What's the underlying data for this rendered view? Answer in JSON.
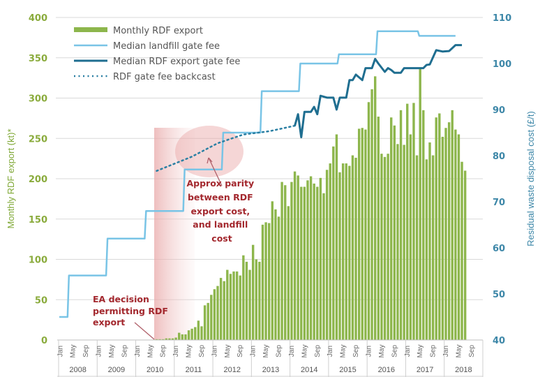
{
  "chart_data": {
    "type": "bar+line",
    "title": "",
    "ylabel_left": "Monthly RDF export (kt)*",
    "ylabel_right": "Residual waste disposal cost (£/t)",
    "ylim_left": [
      0,
      400
    ],
    "yticks_left": [
      0,
      50,
      100,
      150,
      200,
      250,
      300,
      350,
      400
    ],
    "ylim_right": [
      40,
      110
    ],
    "yticks_right": [
      40,
      50,
      60,
      70,
      80,
      90,
      100,
      110
    ],
    "x_month_labels": [
      "Jan",
      "May",
      "Sep"
    ],
    "x_years": [
      "2008",
      "2009",
      "2010",
      "2011",
      "2012",
      "2013",
      "2014",
      "2015",
      "2016",
      "2017",
      "2018"
    ],
    "grid": true,
    "legend_position": "top-left",
    "series": [
      {
        "name": "Monthly RDF export",
        "type": "bar",
        "axis": "left",
        "start": "2010-06",
        "values": [
          0.5,
          1,
          1,
          1,
          2,
          2,
          2,
          3,
          9,
          7,
          7,
          12,
          14,
          16,
          24,
          17,
          43,
          46,
          56,
          63,
          67,
          77,
          73,
          87,
          82,
          85,
          85,
          80,
          105,
          97,
          87,
          118,
          100,
          97,
          143,
          146,
          145,
          172,
          162,
          153,
          196,
          192,
          166,
          196,
          209,
          204,
          190,
          190,
          198,
          203,
          194,
          190,
          201,
          182,
          211,
          219,
          240,
          255,
          208,
          219,
          219,
          216,
          229,
          226,
          262,
          263,
          261,
          295,
          311,
          327,
          277,
          231,
          227,
          231,
          276,
          266,
          243,
          285,
          242,
          293,
          255,
          294,
          229,
          338,
          285,
          224,
          245,
          229,
          276,
          281,
          252,
          263,
          270,
          285,
          261,
          255,
          221,
          210
        ]
      },
      {
        "name": "Median landfill gate fee",
        "type": "step",
        "axis": "right",
        "points": [
          [
            "2008-01",
            45
          ],
          [
            "2008-04",
            54
          ],
          [
            "2009-04",
            62
          ],
          [
            "2010-04",
            68
          ],
          [
            "2011-04",
            77
          ],
          [
            "2012-04",
            85
          ],
          [
            "2013-04",
            94
          ],
          [
            "2014-04",
            100
          ],
          [
            "2015-04",
            102
          ],
          [
            "2016-04",
            107
          ],
          [
            "2017-05",
            106
          ],
          [
            "2018-04",
            106
          ]
        ]
      },
      {
        "name": "Median RDF export gate fee",
        "type": "line",
        "axis": "right",
        "points": [
          [
            "2014-02",
            86.5
          ],
          [
            "2014-03",
            89
          ],
          [
            "2014-04",
            84
          ],
          [
            "2014-05",
            89.5
          ],
          [
            "2014-07",
            89.5
          ],
          [
            "2014-08",
            90.6
          ],
          [
            "2014-09",
            89
          ],
          [
            "2014-10",
            93
          ],
          [
            "2014-12",
            92.6
          ],
          [
            "2015-02",
            92.6
          ],
          [
            "2015-03",
            90
          ],
          [
            "2015-04",
            92.6
          ],
          [
            "2015-06",
            92.6
          ],
          [
            "2015-07",
            96.4
          ],
          [
            "2015-08",
            96.4
          ],
          [
            "2015-09",
            97.6
          ],
          [
            "2015-11",
            96.4
          ],
          [
            "2015-12",
            99
          ],
          [
            "2016-02",
            99
          ],
          [
            "2016-03",
            101
          ],
          [
            "2016-04",
            100
          ],
          [
            "2016-06",
            98.2
          ],
          [
            "2016-07",
            99
          ],
          [
            "2016-08",
            98.6
          ],
          [
            "2016-09",
            98
          ],
          [
            "2016-11",
            98
          ],
          [
            "2016-12",
            99
          ],
          [
            "2017-06",
            99
          ],
          [
            "2017-07",
            99.7
          ],
          [
            "2017-08",
            99.8
          ],
          [
            "2017-10",
            102.9
          ],
          [
            "2017-12",
            102.6
          ],
          [
            "2018-02",
            102.7
          ],
          [
            "2018-04",
            104
          ],
          [
            "2018-06",
            104
          ]
        ]
      },
      {
        "name": "RDF gate fee backcast",
        "type": "dotted-line",
        "axis": "right",
        "points": [
          [
            "2010-07",
            76.7
          ],
          [
            "2011-06",
            79.8
          ],
          [
            "2012-02",
            82.7
          ],
          [
            "2012-10",
            84.6
          ],
          [
            "2013-06",
            85.3
          ],
          [
            "2014-02",
            86.5
          ]
        ]
      }
    ],
    "annotations": [
      {
        "lines": [
          "Approx parity",
          "between RDF",
          "export cost,",
          "and landfill",
          "cost"
        ],
        "points_to": "2012-02"
      },
      {
        "lines": [
          "EA decision",
          "permitting RDF",
          "export"
        ],
        "points_to": "2010-06"
      }
    ]
  },
  "colors": {
    "bar": "#8db64c",
    "landfill_line": "#79c4e6",
    "rdf_line": "#1f6e90",
    "backcast": "#2a7fa3",
    "left_axis": "#8aab3c",
    "right_axis": "#3d87a8",
    "annotation": "#a3282e",
    "highlight": "#e8a5a5"
  }
}
